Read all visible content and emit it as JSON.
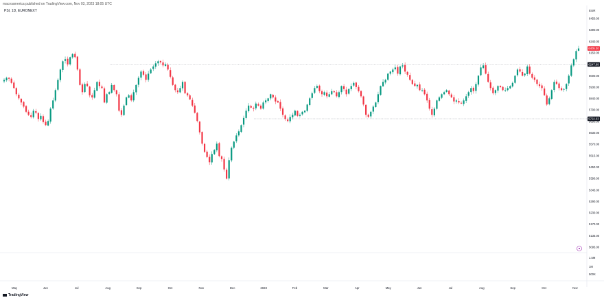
{
  "header": {
    "publisher_line": "macroamerica published on TradingView.com, Nov 03, 2023 18:05 UTC",
    "symbol_line": "PSI, 1D, EURONEXT"
  },
  "brand": {
    "logo_text": "TradingView"
  },
  "chart_data": {
    "type": "candlestick",
    "currency_label": "EUR",
    "price_axis_ticks": [
      "6450.00",
      "6390.00",
      "6340.00",
      "6150.00",
      "6080.00",
      "6000.00",
      "5930.00",
      "5840.00",
      "5790.00",
      "5690.00",
      "5630.00",
      "5570.00",
      "5515.00",
      "5450.00",
      "5390.00",
      "5345.00",
      "5290.00",
      "5230.00",
      "5170.00",
      "5135.00",
      "5095.00"
    ],
    "ylim": [
      5090,
      6500
    ],
    "time_axis_labels": [
      "May",
      "Jun",
      "Jul",
      "Aug",
      "Sep",
      "Oct",
      "Nov",
      "Dec",
      "2023",
      "Feb",
      "Mar",
      "Apr",
      "May",
      "Jun",
      "Jul",
      "Aug",
      "Sep",
      "Oct",
      "Nov"
    ],
    "volume_axis_ticks": [
      "1.5M",
      "1M",
      "500K"
    ],
    "badges": [
      {
        "label": "6405.30",
        "value": 6405,
        "color": "#f23645"
      },
      {
        "label": "6247.98",
        "value": 6250,
        "color": "#131722"
      },
      {
        "label": "5722.03",
        "value": 5722,
        "color": "#131722"
      }
    ],
    "horizontal_levels": [
      6250,
      5722
    ],
    "colors": {
      "up": "#089981",
      "down": "#f23645",
      "level_line": "#9598a1",
      "grid": "#f0f3fa"
    },
    "closes": [
      6100,
      6120,
      6110,
      6070,
      6020,
      5960,
      5920,
      5880,
      5840,
      5790,
      5760,
      5740,
      5800,
      5780,
      5720,
      5750,
      5690,
      5660,
      5700,
      5820,
      5900,
      6000,
      6100,
      6200,
      6280,
      6300,
      6250,
      6320,
      6350,
      6320,
      6200,
      6050,
      5980,
      6060,
      6040,
      5950,
      5930,
      6000,
      6080,
      6040,
      6020,
      5880,
      5960,
      5980,
      6050,
      6000,
      5960,
      5800,
      5760,
      5850,
      5930,
      5950,
      5900,
      5980,
      6050,
      6120,
      6180,
      6150,
      6100,
      6160,
      6200,
      6230,
      6260,
      6280,
      6270,
      6240,
      6250,
      6200,
      6130,
      6050,
      6000,
      5980,
      6020,
      6080,
      5970,
      5950,
      5910,
      5850,
      5780,
      5700,
      5590,
      5480,
      5400,
      5350,
      5300,
      5380,
      5420,
      5480,
      5360,
      5330,
      5230,
      5140,
      5320,
      5440,
      5500,
      5560,
      5600,
      5660,
      5730,
      5800,
      5850,
      5830,
      5820,
      5870,
      5850,
      5820,
      5880,
      5900,
      5920,
      5960,
      5930,
      5890,
      5880,
      5820,
      5760,
      5720,
      5700,
      5740,
      5760,
      5800,
      5750,
      5760,
      5790,
      5800,
      5860,
      5920,
      5970,
      6020,
      6040,
      5990,
      5960,
      5980,
      5940,
      5960,
      5990,
      5980,
      5940,
      5980,
      6040,
      6010,
      5960,
      6010,
      6040,
      6070,
      6030,
      5990,
      5940,
      5860,
      5760,
      5740,
      5790,
      5840,
      5880,
      5960,
      6040,
      6080,
      6100,
      6160,
      6180,
      6200,
      6220,
      6160,
      6230,
      6240,
      6180,
      6150,
      6100,
      6060,
      6040,
      6050,
      6000,
      6000,
      5960,
      5900,
      5820,
      5760,
      5820,
      5900,
      5930,
      5960,
      5980,
      6000,
      5960,
      5930,
      5890,
      5900,
      5880,
      5870,
      5900,
      5940,
      5980,
      6020,
      5990,
      6060,
      6140,
      6220,
      6240,
      6160,
      6080,
      6020,
      5970,
      6000,
      6040,
      6030,
      6000,
      6000,
      6020,
      6040,
      6070,
      6140,
      6200,
      6180,
      6140,
      6160,
      6230,
      6160,
      6120,
      6100,
      6060,
      6040,
      6020,
      5950,
      5860,
      5920,
      6000,
      6080,
      6060,
      6020,
      6000,
      6010,
      6060,
      6140,
      6240,
      6300,
      6380,
      6405
    ]
  }
}
